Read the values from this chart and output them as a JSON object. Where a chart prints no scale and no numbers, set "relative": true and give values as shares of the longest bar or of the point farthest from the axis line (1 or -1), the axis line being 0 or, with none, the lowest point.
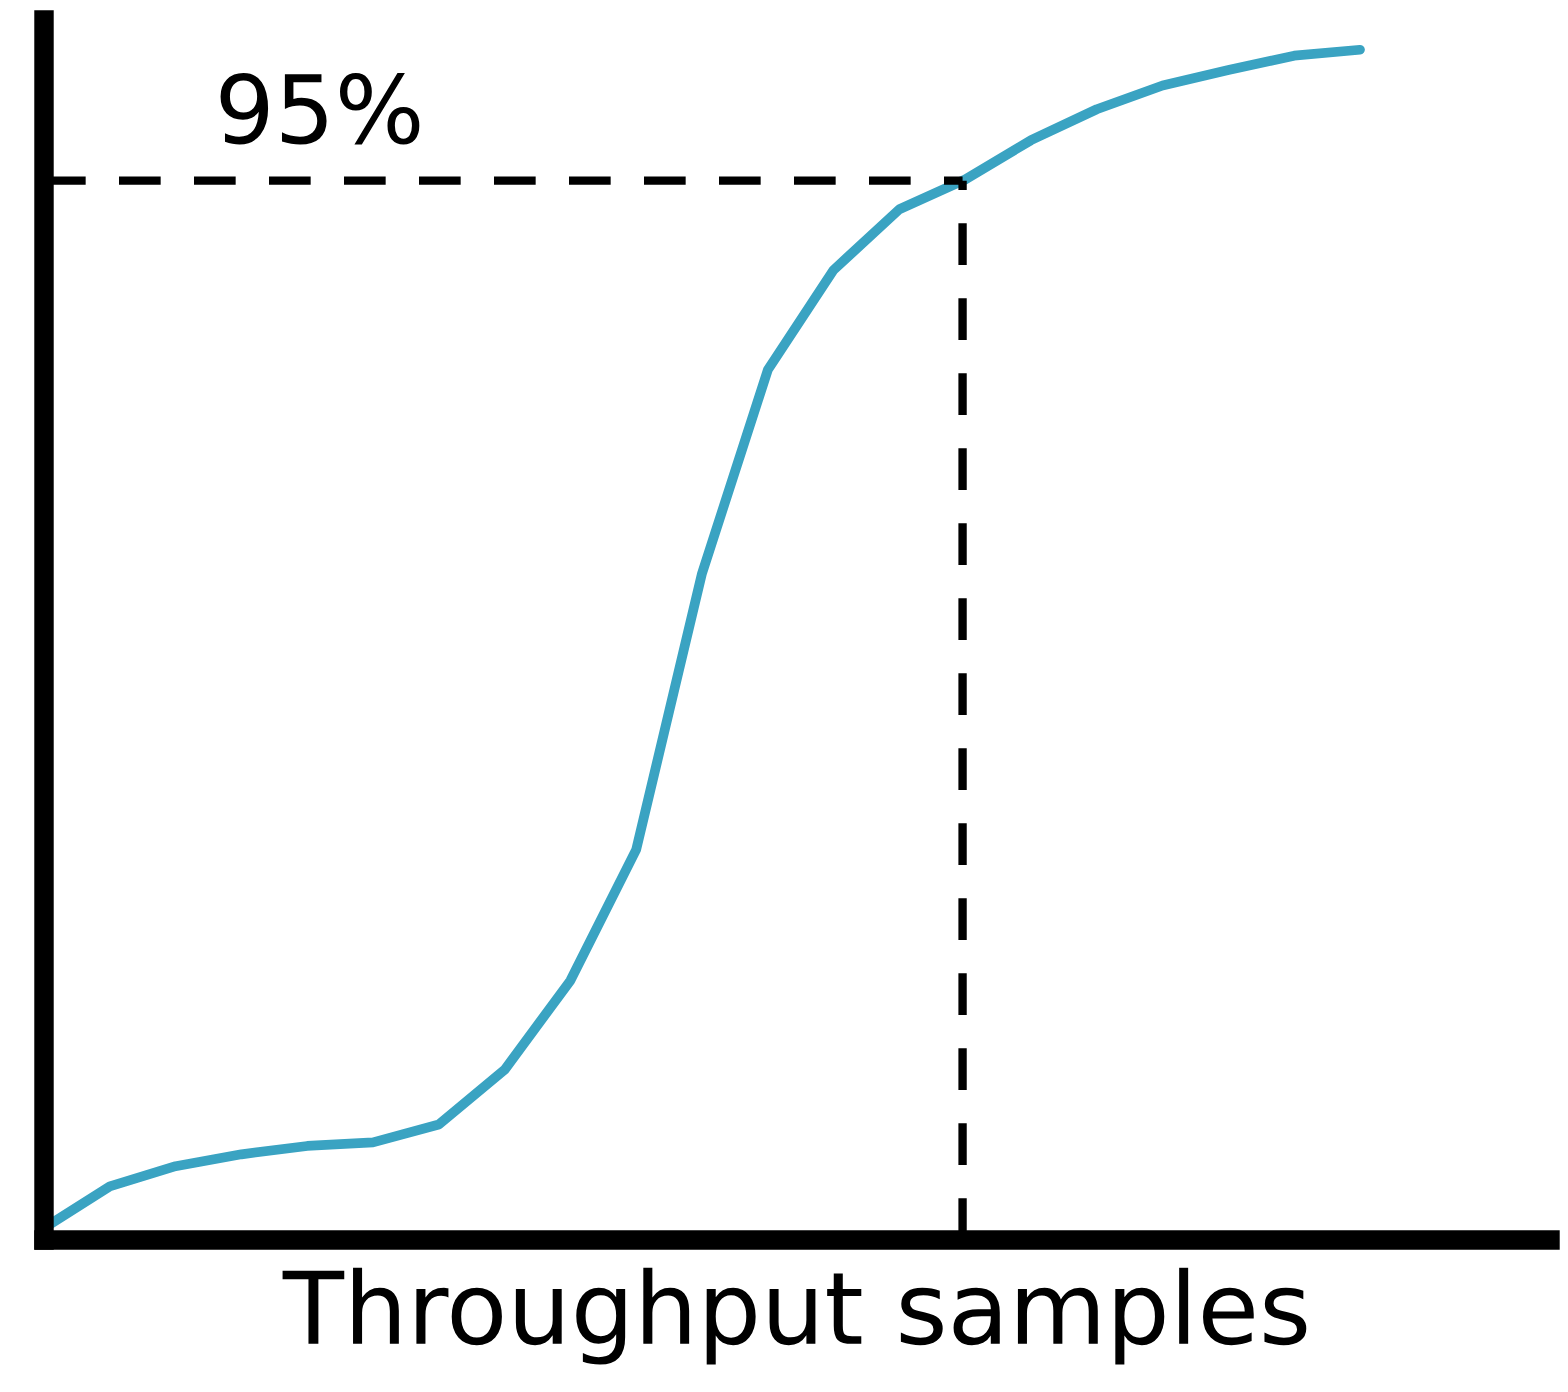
{
  "chart_data": {
    "type": "line",
    "relative": true,
    "xlabel": "Throughput samples",
    "categories": [
      null,
      null,
      null,
      null,
      null,
      null,
      null,
      null,
      null,
      null,
      null,
      null,
      null,
      null,
      null,
      null,
      null,
      null,
      null,
      null,
      null
    ],
    "series": [
      {
        "color": "#3aa3c2",
        "values": [
          0.01,
          0.045,
          0.062,
          0.072,
          0.079,
          0.082,
          0.097,
          0.143,
          0.218,
          0.328,
          0.56,
          0.731,
          0.815,
          0.866,
          0.891,
          0.924,
          0.95,
          0.97,
          0.983,
          0.995,
          1.0
        ]
      }
    ],
    "ref_lines": [
      {
        "axis": "y",
        "value": 0.89,
        "color": "#000000",
        "line_style": "dashed"
      }
    ],
    "annotations": [
      "95%"
    ],
    "tick_labels": false,
    "legend": false,
    "marker": "none",
    "line_style": "solid"
  }
}
